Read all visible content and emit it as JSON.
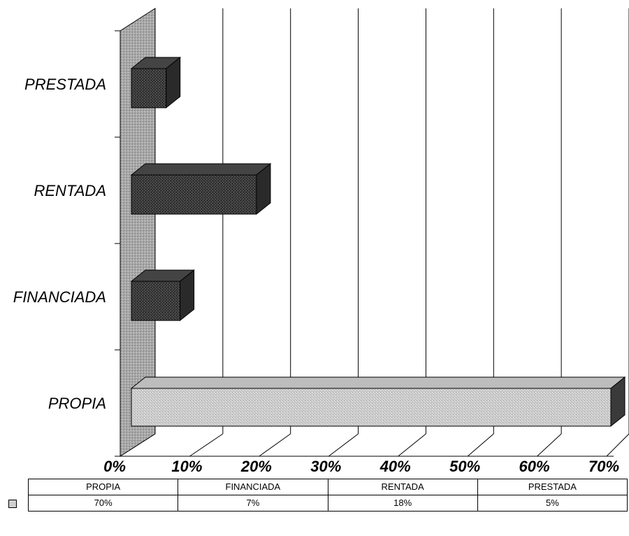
{
  "chart_data": {
    "type": "bar",
    "orientation": "horizontal",
    "three_d": true,
    "categories": [
      "PROPIA",
      "FINANCIADA",
      "RENTADA",
      "PRESTADA"
    ],
    "values": [
      70,
      7,
      18,
      5
    ],
    "value_labels": [
      "70%",
      "7%",
      "18%",
      "5%"
    ],
    "xlim": [
      0,
      70
    ],
    "xticks": [
      0,
      10,
      20,
      30,
      40,
      50,
      60,
      70
    ],
    "xtick_labels": [
      "0%",
      "10%",
      "20%",
      "30%",
      "40%",
      "50%",
      "60%",
      "70%"
    ],
    "grid": true,
    "legend": "data-table-bottom",
    "colors": {
      "PROPIA": "#c8c8c8",
      "FINANCIADA": "#3a3a3a",
      "RENTADA": "#2e2e2e",
      "PRESTADA": "#363636",
      "wall": "#a8a8a8"
    }
  }
}
